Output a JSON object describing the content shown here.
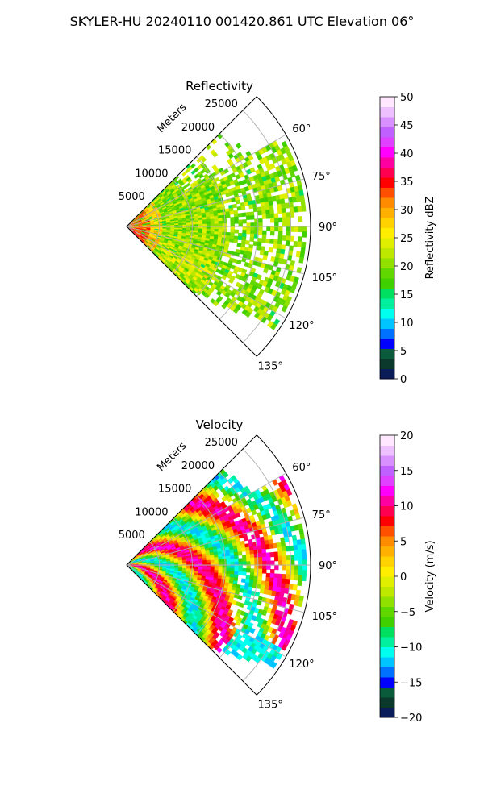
{
  "figure": {
    "suptitle": "SKYLER-HU  20240110  001420.861 UTC Elevation 06°"
  },
  "chart_data": [
    {
      "type": "heatmap",
      "title": "Reflectivity",
      "projection": "polar sector",
      "radial_label": "Meters",
      "r_ticks": [
        5000,
        10000,
        15000,
        20000,
        25000
      ],
      "r_tick_labels": [
        "5000",
        "10000",
        "15000",
        "20000",
        "25000"
      ],
      "rlim": [
        0,
        28000
      ],
      "theta_ticks": [
        60,
        75,
        90,
        105,
        120,
        135
      ],
      "theta_tick_labels": [
        "60°",
        "75°",
        "90°",
        "105°",
        "120°",
        "135°"
      ],
      "theta_range": [
        45,
        135
      ],
      "grid": true,
      "colorbar": {
        "label": "Reflectivity dBZ",
        "range": [
          0,
          50
        ],
        "ticks": [
          0,
          5,
          10,
          15,
          20,
          25,
          30,
          35,
          40,
          45,
          50
        ],
        "tick_labels": [
          "0",
          "5",
          "10",
          "15",
          "20",
          "25",
          "30",
          "35",
          "40",
          "45",
          "50"
        ],
        "colors": [
          "#0a1c5a",
          "#0b3a2c",
          "#0a5a3c",
          "#0000ff",
          "#0070ff",
          "#00c4ff",
          "#00ffee",
          "#00f0a0",
          "#00e060",
          "#40d000",
          "#60d800",
          "#90e000",
          "#bfe800",
          "#e0ee00",
          "#ffee00",
          "#ffd200",
          "#ffb000",
          "#ff8c00",
          "#ff5000",
          "#ff0000",
          "#ff0050",
          "#ff00a0",
          "#ff00ff",
          "#e040ff",
          "#c060ff",
          "#d890ff",
          "#eec0ff",
          "#ffe8ff"
        ]
      },
      "field_description": "Near-range echoes ~30-35 dBZ, most of sector 15-25 dBZ"
    },
    {
      "type": "heatmap",
      "title": "Velocity",
      "projection": "polar sector",
      "radial_label": "Meters",
      "r_ticks": [
        5000,
        10000,
        15000,
        20000,
        25000
      ],
      "r_tick_labels": [
        "5000",
        "10000",
        "15000",
        "20000",
        "25000"
      ],
      "rlim": [
        0,
        28000
      ],
      "theta_ticks": [
        60,
        75,
        90,
        105,
        120,
        135
      ],
      "theta_tick_labels": [
        "60°",
        "75°",
        "90°",
        "105°",
        "120°",
        "135°"
      ],
      "theta_range": [
        45,
        135
      ],
      "grid": true,
      "colorbar": {
        "label": "Velocity (m/s)",
        "range": [
          -20,
          20
        ],
        "ticks": [
          -20,
          -15,
          -10,
          -5,
          0,
          5,
          10,
          15,
          20
        ],
        "tick_labels": [
          "−20",
          "−15",
          "−10",
          "−5",
          "0",
          "5",
          "10",
          "15",
          "20"
        ],
        "colors": [
          "#0a1c5a",
          "#0b3a2c",
          "#0a5a3c",
          "#0000ff",
          "#0070ff",
          "#00c4ff",
          "#00ffee",
          "#00f0a0",
          "#00e060",
          "#40d000",
          "#60d800",
          "#90e000",
          "#bfe800",
          "#e0ee00",
          "#ffee00",
          "#ffd200",
          "#ffb000",
          "#ff8c00",
          "#ff5000",
          "#ff0000",
          "#ff0050",
          "#ff00a0",
          "#ff00ff",
          "#e040ff",
          "#c060ff",
          "#d890ff",
          "#eec0ff",
          "#ffe8ff"
        ]
      },
      "field_description": "Banded velocity: positive (red/magenta) and negative (green/cyan) bands along range"
    }
  ]
}
